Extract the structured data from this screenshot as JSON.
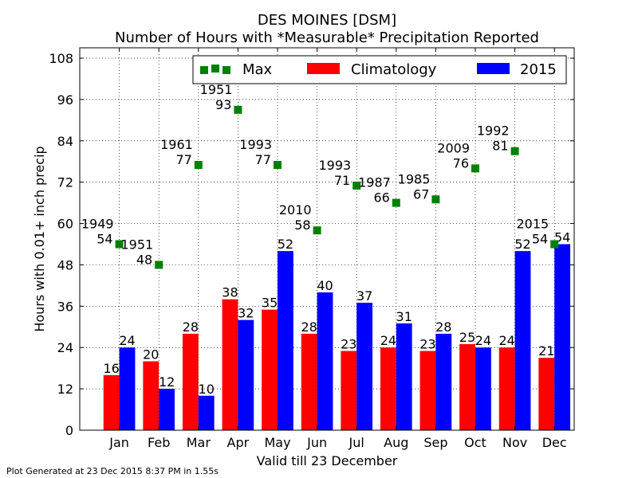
{
  "chart_data": {
    "type": "bar",
    "title": "DES MOINES [DSM]",
    "subtitle": "Number of Hours with *Measurable* Precipitation Reported",
    "xlabel": "Valid till 23 December",
    "ylabel": "Hours with 0.01+ inch precip",
    "ylim": [
      0,
      111
    ],
    "yticks": [
      0,
      12,
      24,
      36,
      48,
      60,
      72,
      84,
      96,
      108
    ],
    "grid": true,
    "legend_position": "top-right",
    "categories": [
      "Jan",
      "Feb",
      "Mar",
      "Apr",
      "May",
      "Jun",
      "Jul",
      "Aug",
      "Sep",
      "Oct",
      "Nov",
      "Dec"
    ],
    "series": [
      {
        "name": "Climatology",
        "type": "bar",
        "color": "#ff0000",
        "values": [
          16,
          20,
          28,
          38,
          35,
          28,
          23,
          24,
          23,
          25,
          24,
          21
        ]
      },
      {
        "name": "2015",
        "type": "bar",
        "color": "#0000ff",
        "values": [
          24,
          12,
          10,
          32,
          52,
          40,
          37,
          31,
          28,
          24,
          52,
          54
        ]
      },
      {
        "name": "Max",
        "type": "scatter",
        "color": "#008000",
        "values": [
          54,
          48,
          77,
          93,
          77,
          58,
          71,
          66,
          67,
          76,
          81,
          54
        ],
        "years": [
          "1949",
          "1951",
          "1961",
          "1951",
          "1993",
          "2010",
          "1993",
          "1987",
          "1985",
          "2009",
          "1992",
          "2015"
        ]
      }
    ]
  },
  "footer_text": "Plot Generated at 23 Dec 2015 8:37 PM in 1.55s"
}
